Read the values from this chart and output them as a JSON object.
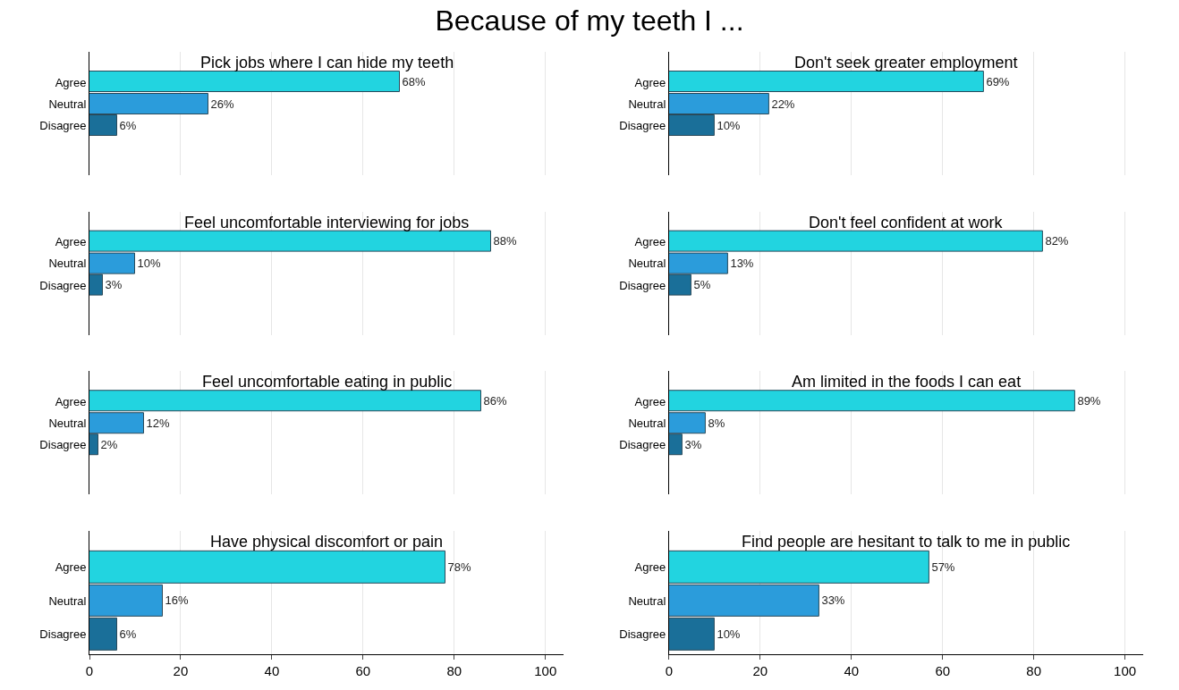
{
  "chart_data": [
    {
      "type": "bar",
      "orientation": "horizontal",
      "annotations": [
        "Because of my teeth I ..."
      ],
      "title": "Pick jobs where I can hide my teeth",
      "categories": [
        "Agree",
        "Neutral",
        "Disagree"
      ],
      "values": [
        68,
        26,
        6
      ],
      "value_labels": [
        "68%",
        "26%",
        "6%"
      ],
      "colors": [
        "#22d4e0",
        "#2b9cdb",
        "#1a6f99"
      ],
      "grid": "x",
      "tick_labels": "y"
    },
    {
      "type": "bar",
      "orientation": "horizontal",
      "title": "Don't seek greater employment",
      "categories": [
        "Agree",
        "Neutral",
        "Disagree"
      ],
      "values": [
        69,
        22,
        10
      ],
      "value_labels": [
        "69%",
        "22%",
        "10%"
      ],
      "colors": [
        "#22d4e0",
        "#2b9cdb",
        "#1a6f99"
      ],
      "grid": "x",
      "tick_labels": "y"
    },
    {
      "type": "bar",
      "orientation": "horizontal",
      "title": "Feel uncomfortable interviewing for jobs",
      "categories": [
        "Agree",
        "Neutral",
        "Disagree"
      ],
      "values": [
        88,
        10,
        3
      ],
      "value_labels": [
        "88%",
        "10%",
        "3%"
      ],
      "colors": [
        "#22d4e0",
        "#2b9cdb",
        "#1a6f99"
      ],
      "grid": "x",
      "tick_labels": "y"
    },
    {
      "type": "bar",
      "orientation": "horizontal",
      "title": "Don't feel confident at work",
      "categories": [
        "Agree",
        "Neutral",
        "Disagree"
      ],
      "values": [
        82,
        13,
        5
      ],
      "value_labels": [
        "82%",
        "13%",
        "5%"
      ],
      "colors": [
        "#22d4e0",
        "#2b9cdb",
        "#1a6f99"
      ],
      "grid": "x",
      "tick_labels": "y"
    },
    {
      "type": "bar",
      "orientation": "horizontal",
      "title": "Feel uncomfortable eating in public",
      "categories": [
        "Agree",
        "Neutral",
        "Disagree"
      ],
      "values": [
        86,
        12,
        2
      ],
      "value_labels": [
        "86%",
        "12%",
        "2%"
      ],
      "colors": [
        "#22d4e0",
        "#2b9cdb",
        "#1a6f99"
      ],
      "grid": "x",
      "tick_labels": "y"
    },
    {
      "type": "bar",
      "orientation": "horizontal",
      "title": "Am limited in the foods I can eat",
      "categories": [
        "Agree",
        "Neutral",
        "Disagree"
      ],
      "values": [
        89,
        8,
        3
      ],
      "value_labels": [
        "89%",
        "8%",
        "3%"
      ],
      "colors": [
        "#22d4e0",
        "#2b9cdb",
        "#1a6f99"
      ],
      "grid": "x",
      "tick_labels": "y"
    },
    {
      "type": "bar",
      "orientation": "horizontal",
      "title": "Have physical discomfort or pain",
      "categories": [
        "Agree",
        "Neutral",
        "Disagree"
      ],
      "values": [
        78,
        16,
        6
      ],
      "value_labels": [
        "78%",
        "16%",
        "6%"
      ],
      "colors": [
        "#22d4e0",
        "#2b9cdb",
        "#1a6f99"
      ],
      "xlim": [
        0,
        104
      ],
      "xticks": [
        0,
        20,
        40,
        60,
        80,
        100
      ],
      "grid": "x"
    },
    {
      "type": "bar",
      "orientation": "horizontal",
      "title": "Find people are hesitant to talk to me in public",
      "categories": [
        "Agree",
        "Neutral",
        "Disagree"
      ],
      "values": [
        57,
        33,
        10
      ],
      "value_labels": [
        "57%",
        "33%",
        "10%"
      ],
      "colors": [
        "#22d4e0",
        "#2b9cdb",
        "#1a6f99"
      ],
      "xlim": [
        0,
        104
      ],
      "xticks": [
        0,
        20,
        40,
        60,
        80,
        100
      ],
      "grid": "x"
    }
  ]
}
